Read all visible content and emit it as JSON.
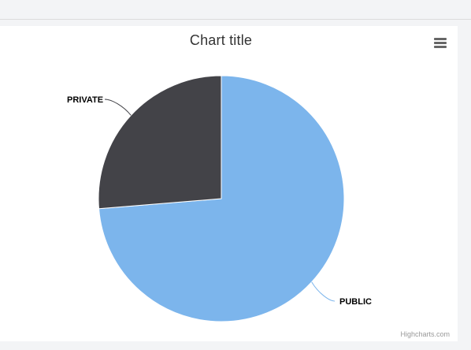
{
  "chart": {
    "title": "Chart title",
    "credits": "Highcharts.com",
    "menu_icon": "hamburger-menu-icon"
  },
  "chart_data": {
    "type": "pie",
    "title": "Chart title",
    "slices": [
      {
        "label": "PUBLIC",
        "value": 73.7,
        "color": "#7cb5ec"
      },
      {
        "label": "PRIVATE",
        "value": 26.3,
        "color": "#434348"
      }
    ]
  }
}
